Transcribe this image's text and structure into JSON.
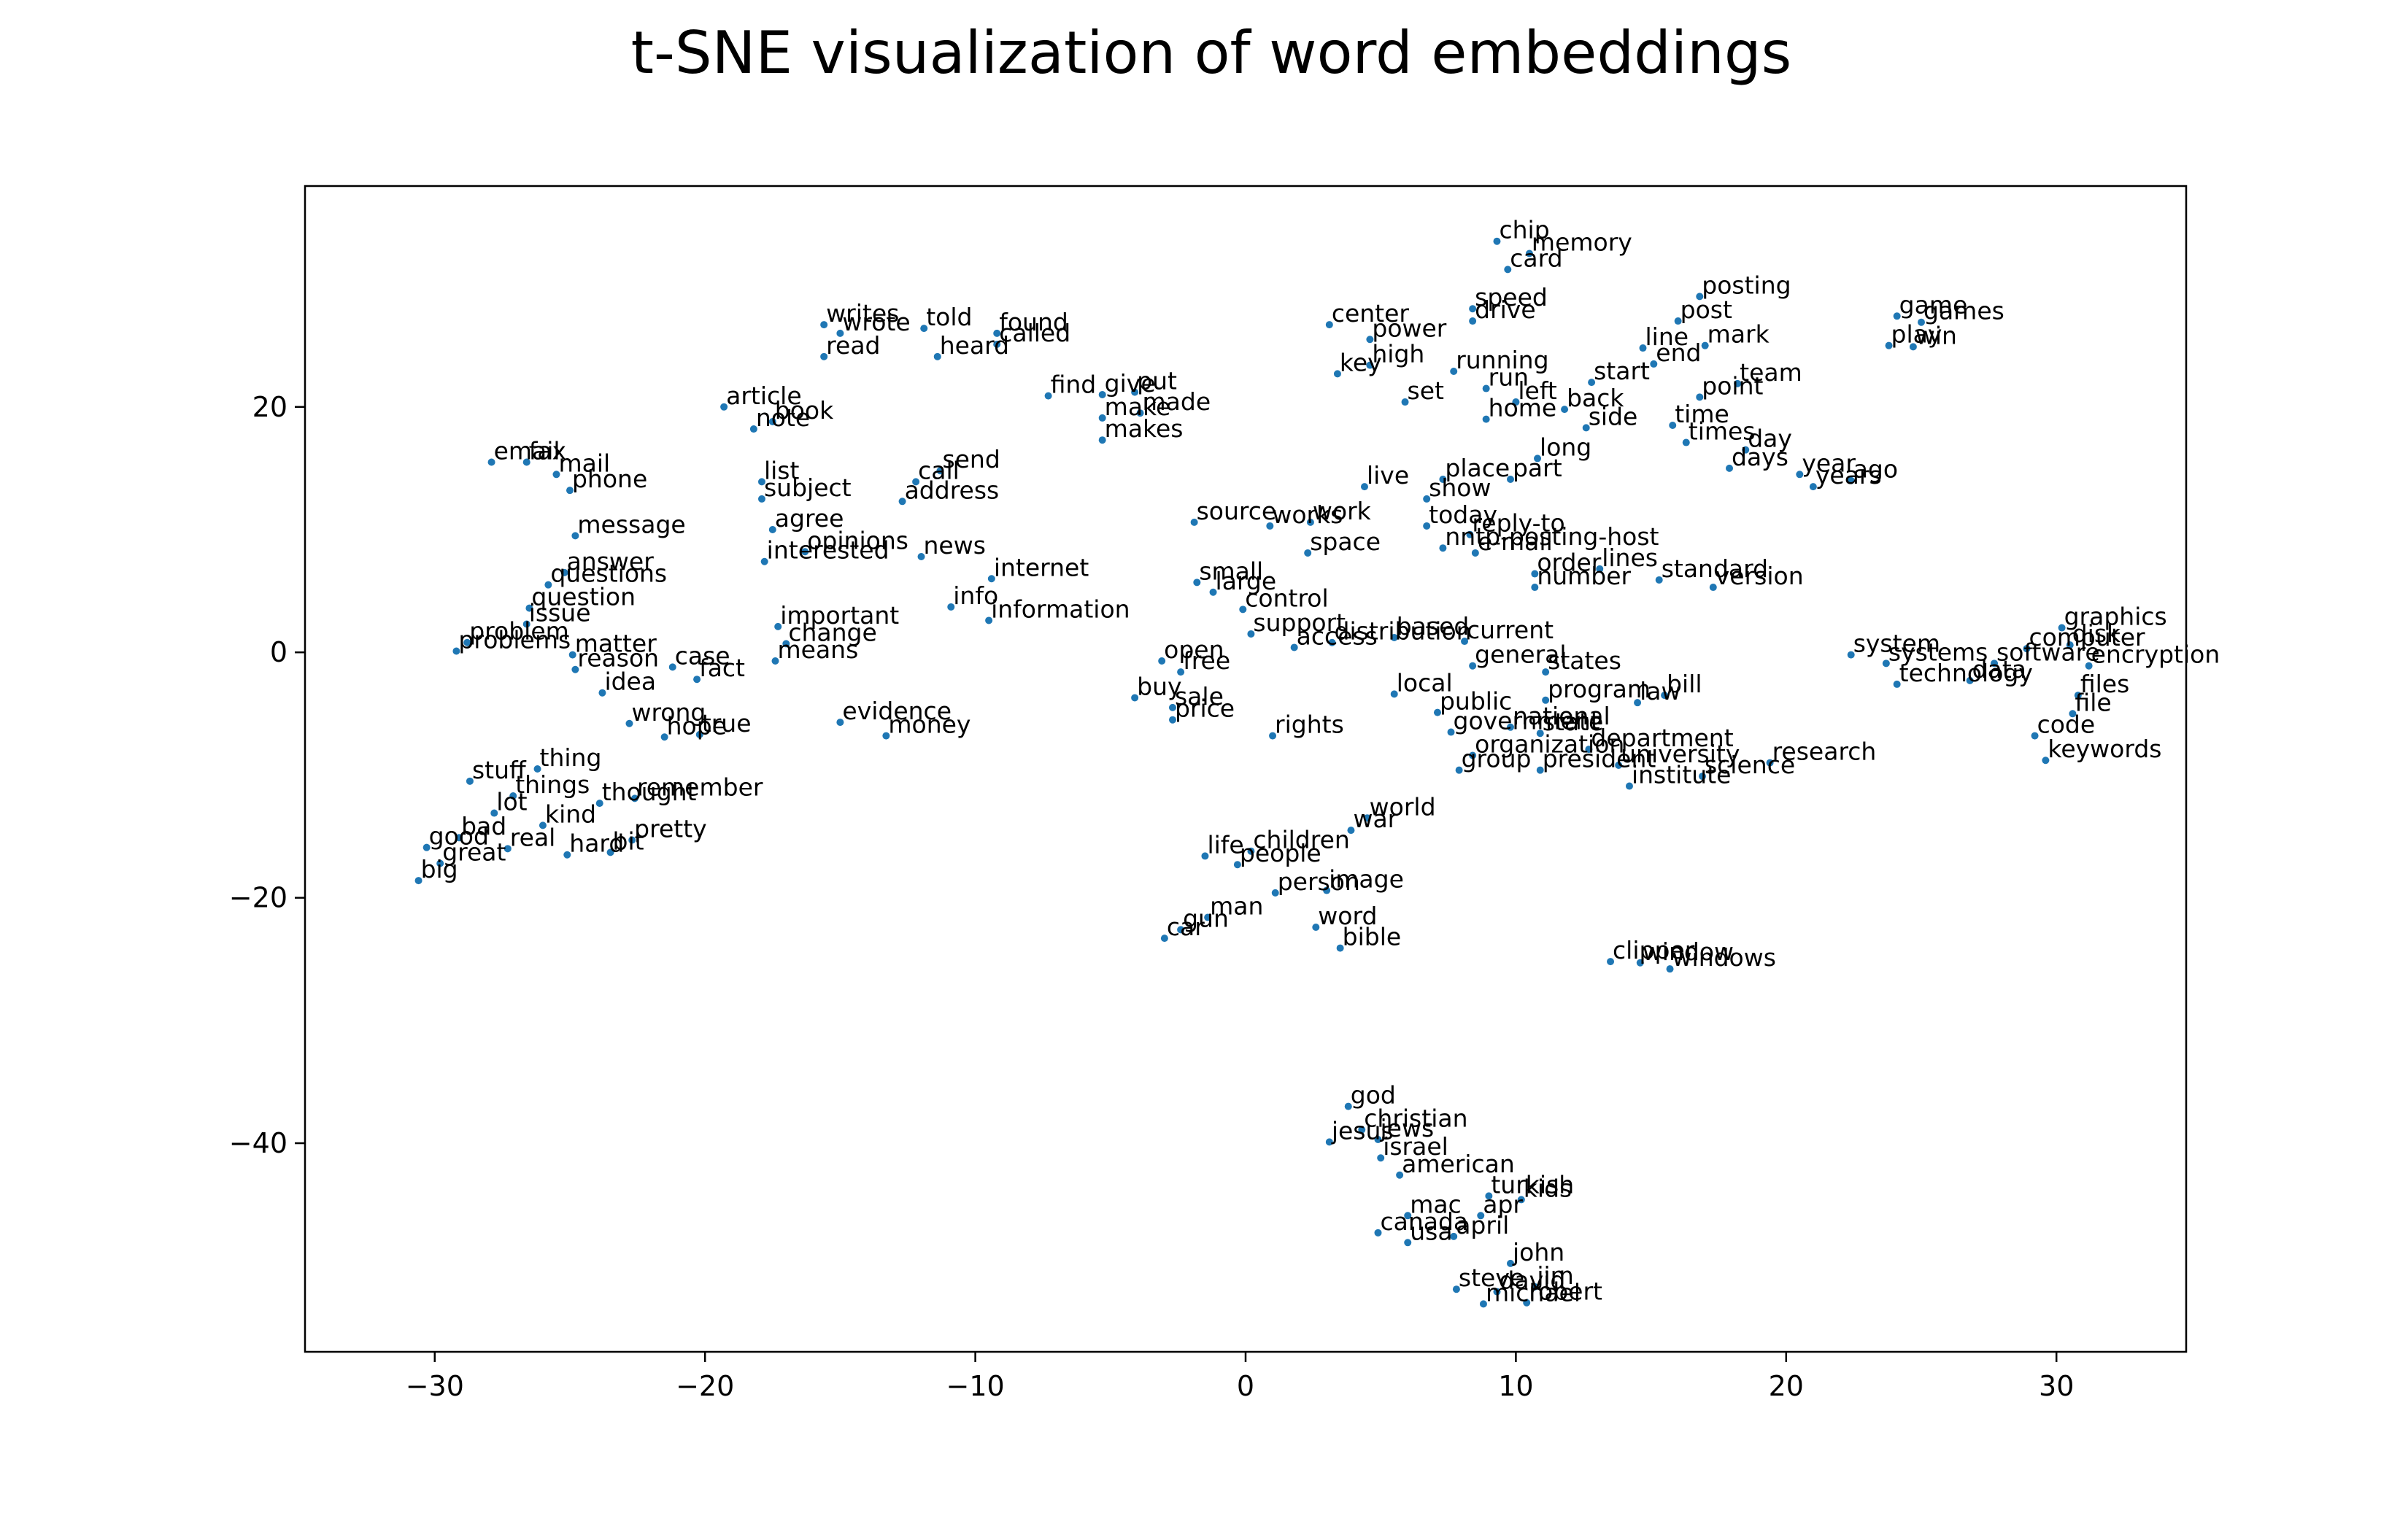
{
  "chart_data": {
    "type": "scatter",
    "title": "t-SNE visualization of word embeddings",
    "xlabel": "",
    "ylabel": "",
    "xlim": [
      -34.8,
      34.8
    ],
    "ylim": [
      -57,
      38
    ],
    "xticks": [
      -30,
      -20,
      -10,
      0,
      10,
      20,
      30
    ],
    "yticks": [
      20,
      0,
      -20,
      -40
    ],
    "xtick_labels": [
      "−30",
      "−20",
      "−10",
      "0",
      "10",
      "20",
      "30"
    ],
    "ytick_labels": [
      "20",
      "0",
      "−20",
      "−40"
    ],
    "grid": false,
    "point_color": "#1f77b4",
    "points": [
      {
        "label": "chip",
        "x": 9.3,
        "y": 33.5
      },
      {
        "label": "memory",
        "x": 10.5,
        "y": 32.5
      },
      {
        "label": "card",
        "x": 9.7,
        "y": 31.2
      },
      {
        "label": "speed",
        "x": 8.4,
        "y": 28.0
      },
      {
        "label": "drive",
        "x": 8.4,
        "y": 27.0
      },
      {
        "label": "posting",
        "x": 16.8,
        "y": 29.0
      },
      {
        "label": "post",
        "x": 16.0,
        "y": 27.0
      },
      {
        "label": "line",
        "x": 14.7,
        "y": 24.8
      },
      {
        "label": "mark",
        "x": 17.0,
        "y": 25.0
      },
      {
        "label": "end",
        "x": 15.1,
        "y": 23.5
      },
      {
        "label": "game",
        "x": 24.1,
        "y": 27.4
      },
      {
        "label": "games",
        "x": 25.0,
        "y": 26.9
      },
      {
        "label": "play",
        "x": 23.8,
        "y": 25.0
      },
      {
        "label": "win",
        "x": 24.7,
        "y": 24.9
      },
      {
        "label": "center",
        "x": 3.1,
        "y": 26.7
      },
      {
        "label": "power",
        "x": 4.6,
        "y": 25.5
      },
      {
        "label": "high",
        "x": 4.6,
        "y": 23.4
      },
      {
        "label": "key",
        "x": 3.4,
        "y": 22.7
      },
      {
        "label": "running",
        "x": 7.7,
        "y": 22.9
      },
      {
        "label": "run",
        "x": 8.9,
        "y": 21.5
      },
      {
        "label": "start",
        "x": 12.8,
        "y": 22.0
      },
      {
        "label": "team",
        "x": 18.2,
        "y": 21.9
      },
      {
        "label": "point",
        "x": 16.8,
        "y": 20.8
      },
      {
        "label": "set",
        "x": 5.9,
        "y": 20.4
      },
      {
        "label": "left",
        "x": 10.0,
        "y": 20.4
      },
      {
        "label": "back",
        "x": 11.8,
        "y": 19.8
      },
      {
        "label": "home",
        "x": 8.9,
        "y": 19.0
      },
      {
        "label": "side",
        "x": 12.6,
        "y": 18.3
      },
      {
        "label": "time",
        "x": 15.8,
        "y": 18.5
      },
      {
        "label": "times",
        "x": 16.3,
        "y": 17.1
      },
      {
        "label": "day",
        "x": 18.5,
        "y": 16.5
      },
      {
        "label": "days",
        "x": 17.9,
        "y": 15.0
      },
      {
        "label": "long",
        "x": 10.8,
        "y": 15.8
      },
      {
        "label": "year",
        "x": 20.5,
        "y": 14.5
      },
      {
        "label": "ago",
        "x": 22.4,
        "y": 14.0
      },
      {
        "label": "years",
        "x": 21.0,
        "y": 13.5
      },
      {
        "label": "live",
        "x": 4.4,
        "y": 13.5
      },
      {
        "label": "place",
        "x": 7.3,
        "y": 14.1
      },
      {
        "label": "part",
        "x": 9.8,
        "y": 14.1
      },
      {
        "label": "show",
        "x": 6.7,
        "y": 12.5
      },
      {
        "label": "today",
        "x": 6.7,
        "y": 10.3
      },
      {
        "label": "reply-to",
        "x": 8.3,
        "y": 9.6
      },
      {
        "label": "nntp-posting-host",
        "x": 7.3,
        "y": 8.5
      },
      {
        "label": "e-mail",
        "x": 8.5,
        "y": 8.1
      },
      {
        "label": "order",
        "x": 10.7,
        "y": 6.4
      },
      {
        "label": "lines",
        "x": 13.1,
        "y": 6.8
      },
      {
        "label": "number",
        "x": 10.7,
        "y": 5.3
      },
      {
        "label": "standard",
        "x": 15.3,
        "y": 5.9
      },
      {
        "label": "version",
        "x": 17.3,
        "y": 5.3
      },
      {
        "label": "source",
        "x": -1.9,
        "y": 10.6
      },
      {
        "label": "works",
        "x": 0.9,
        "y": 10.3
      },
      {
        "label": "work",
        "x": 2.4,
        "y": 10.6
      },
      {
        "label": "space",
        "x": 2.3,
        "y": 8.1
      },
      {
        "label": "small",
        "x": -1.8,
        "y": 5.7
      },
      {
        "label": "large",
        "x": -1.2,
        "y": 4.9
      },
      {
        "label": "control",
        "x": -0.1,
        "y": 3.5
      },
      {
        "label": "support",
        "x": 0.2,
        "y": 1.5
      },
      {
        "label": "access",
        "x": 1.8,
        "y": 0.4
      },
      {
        "label": "distribution",
        "x": 3.2,
        "y": 0.8
      },
      {
        "label": "based",
        "x": 5.5,
        "y": 1.2
      },
      {
        "label": "current",
        "x": 8.1,
        "y": 0.9
      },
      {
        "label": "general",
        "x": 8.4,
        "y": -1.1
      },
      {
        "label": "states",
        "x": 11.1,
        "y": -1.6
      },
      {
        "label": "open",
        "x": -3.1,
        "y": -0.7
      },
      {
        "label": "free",
        "x": -2.4,
        "y": -1.6
      },
      {
        "label": "buy",
        "x": -4.1,
        "y": -3.7
      },
      {
        "label": "sale",
        "x": -2.7,
        "y": -4.5
      },
      {
        "label": "price",
        "x": -2.7,
        "y": -5.5
      },
      {
        "label": "rights",
        "x": 1.0,
        "y": -6.8
      },
      {
        "label": "local",
        "x": 5.5,
        "y": -3.4
      },
      {
        "label": "public",
        "x": 7.1,
        "y": -4.9
      },
      {
        "label": "program",
        "x": 11.1,
        "y": -3.9
      },
      {
        "label": "law",
        "x": 14.5,
        "y": -4.1
      },
      {
        "label": "bill",
        "x": 15.5,
        "y": -3.5
      },
      {
        "label": "government",
        "x": 7.6,
        "y": -6.5
      },
      {
        "label": "national",
        "x": 9.8,
        "y": -6.1
      },
      {
        "label": "state",
        "x": 10.9,
        "y": -6.6
      },
      {
        "label": "department",
        "x": 12.7,
        "y": -7.9
      },
      {
        "label": "organization",
        "x": 8.4,
        "y": -8.4
      },
      {
        "label": "group",
        "x": 7.9,
        "y": -9.6
      },
      {
        "label": "president",
        "x": 10.9,
        "y": -9.6
      },
      {
        "label": "university",
        "x": 13.8,
        "y": -9.2
      },
      {
        "label": "institute",
        "x": 14.2,
        "y": -10.9
      },
      {
        "label": "research",
        "x": 19.4,
        "y": -9.0
      },
      {
        "label": "science",
        "x": 16.9,
        "y": -10.1
      },
      {
        "label": "system",
        "x": 22.4,
        "y": -0.2
      },
      {
        "label": "systems",
        "x": 23.7,
        "y": -0.9
      },
      {
        "label": "software",
        "x": 27.7,
        "y": -0.9
      },
      {
        "label": "technology",
        "x": 24.1,
        "y": -2.6
      },
      {
        "label": "data",
        "x": 26.8,
        "y": -2.3
      },
      {
        "label": "graphics",
        "x": 30.2,
        "y": 2.0
      },
      {
        "label": "computer",
        "x": 28.9,
        "y": 0.3
      },
      {
        "label": "disk",
        "x": 30.5,
        "y": 0.6
      },
      {
        "label": "encryption",
        "x": 31.2,
        "y": -1.1
      },
      {
        "label": "files",
        "x": 30.8,
        "y": -3.5
      },
      {
        "label": "file",
        "x": 30.6,
        "y": -5.0
      },
      {
        "label": "code",
        "x": 29.2,
        "y": -6.8
      },
      {
        "label": "keywords",
        "x": 29.6,
        "y": -8.8
      },
      {
        "label": "writes",
        "x": -15.6,
        "y": 26.7
      },
      {
        "label": "wrote",
        "x": -15.0,
        "y": 26.0
      },
      {
        "label": "told",
        "x": -11.9,
        "y": 26.4
      },
      {
        "label": "found",
        "x": -9.2,
        "y": 26.0
      },
      {
        "label": "called",
        "x": -9.2,
        "y": 25.1
      },
      {
        "label": "read",
        "x": -15.6,
        "y": 24.1
      },
      {
        "label": "heard",
        "x": -11.4,
        "y": 24.1
      },
      {
        "label": "article",
        "x": -19.3,
        "y": 20.0
      },
      {
        "label": "book",
        "x": -17.5,
        "y": 18.8
      },
      {
        "label": "note",
        "x": -18.2,
        "y": 18.2
      },
      {
        "label": "find",
        "x": -7.3,
        "y": 20.9
      },
      {
        "label": "give",
        "x": -5.3,
        "y": 21.0
      },
      {
        "label": "put",
        "x": -4.1,
        "y": 21.2
      },
      {
        "label": "made",
        "x": -3.9,
        "y": 19.5
      },
      {
        "label": "make",
        "x": -5.3,
        "y": 19.1
      },
      {
        "label": "makes",
        "x": -5.3,
        "y": 17.3
      },
      {
        "label": "email",
        "x": -27.9,
        "y": 15.5
      },
      {
        "label": "fax",
        "x": -26.6,
        "y": 15.5
      },
      {
        "label": "mail",
        "x": -25.5,
        "y": 14.5
      },
      {
        "label": "phone",
        "x": -25.0,
        "y": 13.2
      },
      {
        "label": "list",
        "x": -17.9,
        "y": 13.9
      },
      {
        "label": "subject",
        "x": -17.9,
        "y": 12.5
      },
      {
        "label": "send",
        "x": -11.3,
        "y": 14.8
      },
      {
        "label": "call",
        "x": -12.2,
        "y": 13.9
      },
      {
        "label": "address",
        "x": -12.7,
        "y": 12.3
      },
      {
        "label": "message",
        "x": -24.8,
        "y": 9.5
      },
      {
        "label": "agree",
        "x": -17.5,
        "y": 10.0
      },
      {
        "label": "opinions",
        "x": -16.3,
        "y": 8.2
      },
      {
        "label": "interested",
        "x": -17.8,
        "y": 7.4
      },
      {
        "label": "news",
        "x": -12.0,
        "y": 7.8
      },
      {
        "label": "internet",
        "x": -9.4,
        "y": 6.0
      },
      {
        "label": "info",
        "x": -10.9,
        "y": 3.7
      },
      {
        "label": "information",
        "x": -9.5,
        "y": 2.6
      },
      {
        "label": "answer",
        "x": -25.2,
        "y": 6.5
      },
      {
        "label": "questions",
        "x": -25.8,
        "y": 5.5
      },
      {
        "label": "question",
        "x": -26.5,
        "y": 3.6
      },
      {
        "label": "issue",
        "x": -26.6,
        "y": 2.3
      },
      {
        "label": "problem",
        "x": -28.8,
        "y": 0.8
      },
      {
        "label": "problems",
        "x": -29.2,
        "y": 0.1
      },
      {
        "label": "matter",
        "x": -24.9,
        "y": -0.2
      },
      {
        "label": "reason",
        "x": -24.8,
        "y": -1.4
      },
      {
        "label": "case",
        "x": -21.2,
        "y": -1.2
      },
      {
        "label": "fact",
        "x": -20.3,
        "y": -2.2
      },
      {
        "label": "idea",
        "x": -23.8,
        "y": -3.3
      },
      {
        "label": "important",
        "x": -17.3,
        "y": 2.1
      },
      {
        "label": "change",
        "x": -17.0,
        "y": 0.7
      },
      {
        "label": "means",
        "x": -17.4,
        "y": -0.7
      },
      {
        "label": "wrong",
        "x": -22.8,
        "y": -5.8
      },
      {
        "label": "true",
        "x": -20.2,
        "y": -6.7
      },
      {
        "label": "hope",
        "x": -21.5,
        "y": -6.9
      },
      {
        "label": "evidence",
        "x": -15.0,
        "y": -5.7
      },
      {
        "label": "money",
        "x": -13.3,
        "y": -6.8
      },
      {
        "label": "thing",
        "x": -26.2,
        "y": -9.5
      },
      {
        "label": "stuff",
        "x": -28.7,
        "y": -10.5
      },
      {
        "label": "things",
        "x": -27.1,
        "y": -11.7
      },
      {
        "label": "lot",
        "x": -27.8,
        "y": -13.1
      },
      {
        "label": "remember",
        "x": -22.6,
        "y": -11.9
      },
      {
        "label": "thought",
        "x": -23.9,
        "y": -12.3
      },
      {
        "label": "kind",
        "x": -26.0,
        "y": -14.1
      },
      {
        "label": "pretty",
        "x": -22.7,
        "y": -15.3
      },
      {
        "label": "bad",
        "x": -29.1,
        "y": -15.1
      },
      {
        "label": "good",
        "x": -30.3,
        "y": -15.9
      },
      {
        "label": "real",
        "x": -27.3,
        "y": -16.0
      },
      {
        "label": "great",
        "x": -29.8,
        "y": -17.2
      },
      {
        "label": "hard",
        "x": -25.1,
        "y": -16.5
      },
      {
        "label": "bit",
        "x": -23.5,
        "y": -16.3
      },
      {
        "label": "big",
        "x": -30.6,
        "y": -18.6
      },
      {
        "label": "world",
        "x": 4.5,
        "y": -13.5
      },
      {
        "label": "war",
        "x": 3.9,
        "y": -14.5
      },
      {
        "label": "life",
        "x": -1.5,
        "y": -16.6
      },
      {
        "label": "children",
        "x": 0.2,
        "y": -16.2
      },
      {
        "label": "people",
        "x": -0.3,
        "y": -17.3
      },
      {
        "label": "image",
        "x": 3.0,
        "y": -19.4
      },
      {
        "label": "person",
        "x": 1.1,
        "y": -19.6
      },
      {
        "label": "man",
        "x": -1.4,
        "y": -21.6
      },
      {
        "label": "gun",
        "x": -2.4,
        "y": -22.6
      },
      {
        "label": "car",
        "x": -3.0,
        "y": -23.3
      },
      {
        "label": "word",
        "x": 2.6,
        "y": -22.4
      },
      {
        "label": "bible",
        "x": 3.5,
        "y": -24.1
      },
      {
        "label": "clipper",
        "x": 13.5,
        "y": -25.2
      },
      {
        "label": "window",
        "x": 14.6,
        "y": -25.3
      },
      {
        "label": "windows",
        "x": 15.7,
        "y": -25.8
      },
      {
        "label": "god",
        "x": 3.8,
        "y": -37.0
      },
      {
        "label": "christian",
        "x": 4.3,
        "y": -38.9
      },
      {
        "label": "jesus",
        "x": 3.1,
        "y": -39.9
      },
      {
        "label": "jews",
        "x": 4.9,
        "y": -39.7
      },
      {
        "label": "israel",
        "x": 5.0,
        "y": -41.2
      },
      {
        "label": "american",
        "x": 5.7,
        "y": -42.6
      },
      {
        "label": "turkish",
        "x": 9.0,
        "y": -44.3
      },
      {
        "label": "apr",
        "x": 8.7,
        "y": -45.9
      },
      {
        "label": "mac",
        "x": 6.0,
        "y": -45.9
      },
      {
        "label": "canada",
        "x": 4.9,
        "y": -47.3
      },
      {
        "label": "usa",
        "x": 6.0,
        "y": -48.1
      },
      {
        "label": "april",
        "x": 7.7,
        "y": -47.6
      },
      {
        "label": "kids",
        "x": 10.2,
        "y": -44.6
      },
      {
        "label": "john",
        "x": 9.8,
        "y": -49.8
      },
      {
        "label": "jim",
        "x": 10.7,
        "y": -51.7
      },
      {
        "label": "david",
        "x": 9.3,
        "y": -52.1
      },
      {
        "label": "steve",
        "x": 7.8,
        "y": -51.9
      },
      {
        "label": "michael",
        "x": 8.8,
        "y": -53.1
      },
      {
        "label": "robert",
        "x": 10.4,
        "y": -53.0
      }
    ]
  }
}
